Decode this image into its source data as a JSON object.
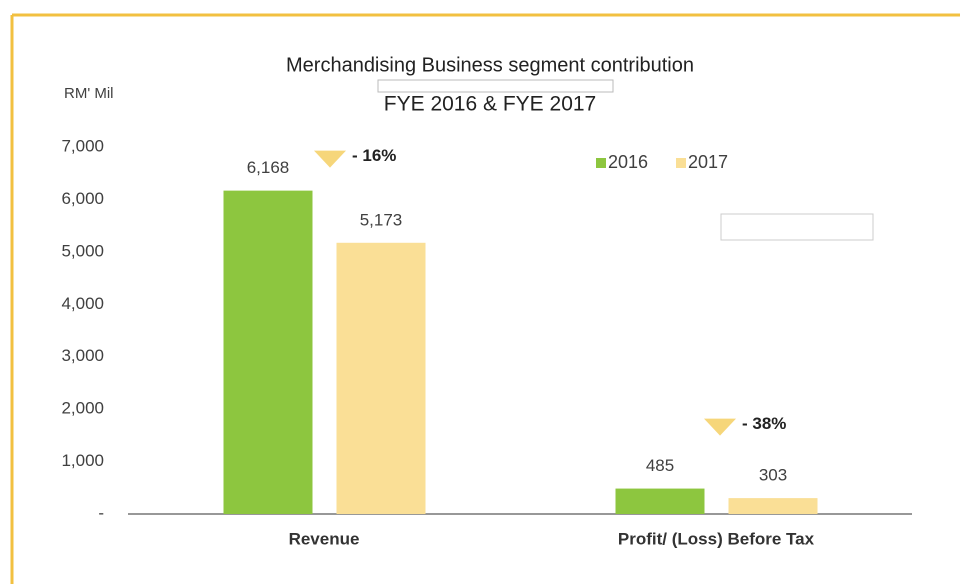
{
  "chart_data": {
    "type": "bar",
    "title": "Merchandising Business segment contribution",
    "subtitle": "FYE 2016 & FYE 2017",
    "y_label": "RM' Mil",
    "categories": [
      "Revenue",
      "Profit/ (Loss) Before Tax"
    ],
    "series": [
      {
        "name": "2016",
        "color": "#8dc63f",
        "values": [
          6168,
          485
        ],
        "value_labels": [
          "6,168",
          "485"
        ]
      },
      {
        "name": "2017",
        "color": "#fadf96",
        "values": [
          5173,
          303
        ],
        "value_labels": [
          "5,173",
          "303"
        ]
      }
    ],
    "annotations": [
      "- 16%",
      "- 38%"
    ],
    "ylim": [
      0,
      7000
    ],
    "yticks": [
      {
        "value": 0,
        "label": "-"
      },
      {
        "value": 1000,
        "label": "1,000"
      },
      {
        "value": 2000,
        "label": "2,000"
      },
      {
        "value": 3000,
        "label": "3,000"
      },
      {
        "value": 4000,
        "label": "4,000"
      },
      {
        "value": 5000,
        "label": "5,000"
      },
      {
        "value": 6000,
        "label": "6,000"
      },
      {
        "value": 7000,
        "label": "7,000"
      }
    ],
    "grid": false,
    "legend": "top-right"
  }
}
